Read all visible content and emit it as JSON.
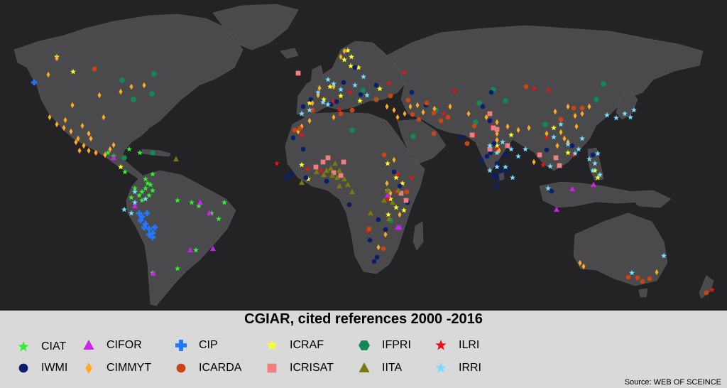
{
  "title": "CGIAR,  cited references 2000 -2016",
  "source": "Source: WEB OF SCEINCE",
  "legend": [
    {
      "id": "ciat",
      "label": "CIAT",
      "color": "#33ee33",
      "shape": "star5"
    },
    {
      "id": "cifor",
      "label": "CIFOR",
      "color": "#cc22ee",
      "shape": "triangle"
    },
    {
      "id": "cip",
      "label": "CIP",
      "color": "#2277ff",
      "shape": "cross"
    },
    {
      "id": "icraf",
      "label": "ICRAF",
      "color": "#ffff22",
      "shape": "star5"
    },
    {
      "id": "ifpri",
      "label": "IFPRI",
      "color": "#118855",
      "shape": "hexagon"
    },
    {
      "id": "ilri",
      "label": "ILRI",
      "color": "#ee1111",
      "shape": "star5"
    },
    {
      "id": "iwmi",
      "label": "IWMI",
      "color": "#0a1e6e",
      "shape": "circle"
    },
    {
      "id": "cimmyt",
      "label": "CIMMYT",
      "color": "#ffaa22",
      "shape": "diamond"
    },
    {
      "id": "icarda",
      "label": "ICARDA",
      "color": "#cc4411",
      "shape": "circle"
    },
    {
      "id": "icrisat",
      "label": "ICRISAT",
      "color": "#f08080",
      "shape": "square"
    },
    {
      "id": "iita",
      "label": "IITA",
      "color": "#7a7a10",
      "shape": "triangle"
    },
    {
      "id": "irri",
      "label": "IRRI",
      "color": "#77ddff",
      "shape": "star5"
    }
  ],
  "map_points": {
    "ciat": [
      [
        208,
        258
      ],
      [
        205,
        265
      ],
      [
        200,
        270
      ],
      [
        196,
        275
      ],
      [
        212,
        260
      ],
      [
        190,
        265
      ],
      [
        185,
        278
      ],
      [
        215,
        245
      ],
      [
        210,
        275
      ],
      [
        250,
        282
      ],
      [
        270,
        285
      ],
      [
        298,
        300
      ],
      [
        280,
        290
      ],
      [
        316,
        285
      ],
      [
        308,
        308
      ],
      [
        176,
        242
      ],
      [
        160,
        220
      ],
      [
        152,
        215
      ],
      [
        200,
        282
      ],
      [
        276,
        352
      ],
      [
        215,
        384
      ],
      [
        250,
        378
      ],
      [
        197,
        215
      ],
      [
        182,
        210
      ],
      [
        215,
        268
      ],
      [
        205,
        252
      ]
    ],
    "cifor": [
      [
        160,
        222
      ],
      [
        190,
        290
      ],
      [
        295,
        300
      ],
      [
        300,
        350
      ],
      [
        282,
        285
      ],
      [
        268,
        352
      ],
      [
        546,
        275
      ],
      [
        563,
        320
      ],
      [
        784,
        295
      ],
      [
        806,
        266
      ],
      [
        836,
        260
      ],
      [
        216,
        385
      ],
      [
        560,
        320
      ]
    ],
    "cip": [
      [
        48,
        116
      ],
      [
        200,
        305
      ],
      [
        205,
        315
      ],
      [
        210,
        322
      ],
      [
        215,
        328
      ],
      [
        203,
        320
      ],
      [
        198,
        310
      ],
      [
        207,
        300
      ],
      [
        218,
        320
      ],
      [
        215,
        334
      ],
      [
        210,
        330
      ],
      [
        196,
        300
      ]
    ],
    "icraf": [
      [
        103,
        101
      ],
      [
        80,
        80
      ],
      [
        490,
        71
      ],
      [
        485,
        84
      ],
      [
        495,
        80
      ],
      [
        494,
        93
      ],
      [
        505,
        95
      ],
      [
        465,
        122
      ],
      [
        436,
        145
      ],
      [
        456,
        140
      ],
      [
        480,
        135
      ],
      [
        507,
        142
      ],
      [
        535,
        125
      ],
      [
        546,
        230
      ],
      [
        558,
        250
      ],
      [
        567,
        258
      ],
      [
        550,
        280
      ],
      [
        558,
        292
      ],
      [
        569,
        296
      ],
      [
        547,
        302
      ],
      [
        780,
        180
      ],
      [
        800,
        215
      ],
      [
        838,
        240
      ],
      [
        842,
        250
      ],
      [
        425,
        232
      ],
      [
        434,
        252
      ],
      [
        546,
        268
      ],
      [
        720,
        190
      ],
      [
        700,
        205
      ],
      [
        170,
        235
      ]
    ],
    "ifpri": [
      [
        217,
        104
      ],
      [
        172,
        113
      ],
      [
        188,
        140
      ],
      [
        214,
        132
      ],
      [
        175,
        222
      ],
      [
        215,
        215
      ],
      [
        496,
        183
      ],
      [
        511,
        127
      ],
      [
        530,
        140
      ],
      [
        582,
        192
      ],
      [
        614,
        155
      ],
      [
        670,
        172
      ],
      [
        675,
        145
      ],
      [
        712,
        142
      ],
      [
        768,
        175
      ],
      [
        850,
        118
      ],
      [
        695,
        126
      ],
      [
        840,
        140
      ],
      [
        550,
        310
      ]
    ],
    "ilri": [
      [
        548,
        117
      ],
      [
        569,
        102
      ],
      [
        425,
        190
      ],
      [
        470,
        143
      ],
      [
        478,
        154
      ],
      [
        493,
        129
      ],
      [
        640,
        128
      ],
      [
        752,
        125
      ],
      [
        773,
        127
      ],
      [
        808,
        218
      ],
      [
        765,
        232
      ],
      [
        433,
        238
      ],
      [
        452,
        240
      ],
      [
        560,
        245
      ],
      [
        580,
        250
      ],
      [
        558,
        270
      ],
      [
        546,
        280
      ],
      [
        518,
        325
      ],
      [
        625,
        160
      ],
      [
        693,
        178
      ],
      [
        700,
        210
      ],
      [
        668,
        190
      ],
      [
        390,
        230
      ],
      [
        1003,
        408
      ],
      [
        770,
        194
      ]
    ],
    "iwmi": [
      [
        413,
        194
      ],
      [
        427,
        210
      ],
      [
        427,
        150
      ],
      [
        438,
        140
      ],
      [
        466,
        147
      ],
      [
        474,
        143
      ],
      [
        484,
        116
      ],
      [
        508,
        133
      ],
      [
        530,
        120
      ],
      [
        500,
        95
      ],
      [
        580,
        130
      ],
      [
        600,
        148
      ],
      [
        649,
        193
      ],
      [
        692,
        130
      ],
      [
        680,
        150
      ],
      [
        690,
        170
      ],
      [
        696,
        202
      ],
      [
        691,
        215
      ],
      [
        700,
        230
      ],
      [
        695,
        247
      ],
      [
        700,
        250
      ],
      [
        686,
        220
      ],
      [
        678,
        225
      ],
      [
        712,
        218
      ],
      [
        714,
        240
      ],
      [
        770,
        211
      ],
      [
        777,
        269
      ],
      [
        806,
        205
      ],
      [
        835,
        218
      ],
      [
        404,
        250
      ],
      [
        410,
        245
      ],
      [
        431,
        250
      ],
      [
        460,
        255
      ],
      [
        492,
        288
      ],
      [
        533,
        309
      ],
      [
        543,
        323
      ],
      [
        521,
        338
      ],
      [
        531,
        362
      ],
      [
        527,
        368
      ],
      [
        574,
        285
      ],
      [
        563,
        262
      ],
      [
        700,
        262
      ],
      [
        555,
        242
      ],
      [
        705,
        240
      ]
    ],
    "cimmyt": [
      [
        68,
        105
      ],
      [
        80,
        82
      ],
      [
        140,
        134
      ],
      [
        146,
        165
      ],
      [
        170,
        129
      ],
      [
        116,
        177
      ],
      [
        102,
        148
      ],
      [
        70,
        165
      ],
      [
        80,
        175
      ],
      [
        90,
        180
      ],
      [
        100,
        185
      ],
      [
        110,
        195
      ],
      [
        118,
        205
      ],
      [
        125,
        212
      ],
      [
        135,
        215
      ],
      [
        148,
        218
      ],
      [
        155,
        210
      ],
      [
        160,
        204
      ],
      [
        92,
        169
      ],
      [
        107,
        200
      ],
      [
        128,
        195
      ],
      [
        112,
        212
      ],
      [
        125,
        188
      ],
      [
        485,
        72
      ],
      [
        480,
        80
      ],
      [
        450,
        124
      ],
      [
        448,
        134
      ],
      [
        440,
        145
      ],
      [
        470,
        122
      ],
      [
        470,
        165
      ],
      [
        436,
        170
      ],
      [
        425,
        178
      ],
      [
        420,
        185
      ],
      [
        545,
        150
      ],
      [
        555,
        155
      ],
      [
        560,
        165
      ],
      [
        570,
        160
      ],
      [
        578,
        150
      ],
      [
        588,
        148
      ],
      [
        596,
        158
      ],
      [
        612,
        153
      ],
      [
        634,
        150
      ],
      [
        660,
        160
      ],
      [
        685,
        165
      ],
      [
        700,
        172
      ],
      [
        715,
        178
      ],
      [
        730,
        183
      ],
      [
        745,
        180
      ],
      [
        700,
        197
      ],
      [
        703,
        212
      ],
      [
        782,
        157
      ],
      [
        800,
        150
      ],
      [
        810,
        163
      ],
      [
        820,
        160
      ],
      [
        830,
        150
      ],
      [
        790,
        186
      ],
      [
        795,
        195
      ],
      [
        812,
        178
      ],
      [
        800,
        200
      ],
      [
        785,
        205
      ],
      [
        770,
        188
      ],
      [
        817,
        370
      ],
      [
        822,
        375
      ],
      [
        925,
        383
      ],
      [
        545,
        258
      ],
      [
        550,
        272
      ],
      [
        543,
        330
      ],
      [
        533,
        348
      ],
      [
        563,
        302
      ],
      [
        555,
        225
      ],
      [
        700,
        188
      ],
      [
        752,
        228
      ],
      [
        185,
        122
      ],
      [
        203,
        120
      ]
    ],
    "icarda": [
      [
        133,
        97
      ],
      [
        415,
        183
      ],
      [
        422,
        181
      ],
      [
        440,
        155
      ],
      [
        496,
        155
      ],
      [
        480,
        160
      ],
      [
        530,
        140
      ],
      [
        550,
        135
      ],
      [
        575,
        141
      ],
      [
        581,
        161
      ],
      [
        590,
        168
      ],
      [
        601,
        145
      ],
      [
        611,
        159
      ],
      [
        621,
        170
      ],
      [
        631,
        165
      ],
      [
        611,
        188
      ],
      [
        658,
        202
      ],
      [
        668,
        177
      ],
      [
        741,
        122
      ],
      [
        808,
        152
      ],
      [
        820,
        152
      ],
      [
        790,
        168
      ],
      [
        541,
        218
      ],
      [
        573,
        270
      ],
      [
        520,
        322
      ],
      [
        898,
        391
      ],
      [
        905,
        396
      ],
      [
        915,
        392
      ],
      [
        995,
        412
      ],
      [
        885,
        390
      ],
      [
        540,
        350
      ]
    ],
    "icrisat": [
      [
        420,
        103
      ],
      [
        462,
        222
      ],
      [
        445,
        235
      ],
      [
        470,
        243
      ],
      [
        480,
        247
      ],
      [
        484,
        228
      ],
      [
        565,
        272
      ],
      [
        572,
        282
      ],
      [
        690,
        160
      ],
      [
        695,
        180
      ],
      [
        700,
        182
      ],
      [
        690,
        210
      ],
      [
        715,
        205
      ],
      [
        760,
        218
      ],
      [
        783,
        222
      ],
      [
        788,
        233
      ],
      [
        665,
        190
      ],
      [
        455,
        228
      ]
    ],
    "iita": [
      [
        425,
        257
      ],
      [
        446,
        242
      ],
      [
        456,
        246
      ],
      [
        460,
        240
      ],
      [
        466,
        237
      ],
      [
        472,
        230
      ],
      [
        478,
        240
      ],
      [
        485,
        252
      ],
      [
        490,
        260
      ],
      [
        478,
        262
      ],
      [
        468,
        247
      ],
      [
        496,
        270
      ],
      [
        546,
        268
      ],
      [
        553,
        285
      ],
      [
        548,
        308
      ],
      [
        561,
        268
      ],
      [
        522,
        300
      ],
      [
        541,
        282
      ],
      [
        248,
        224
      ],
      [
        475,
        250
      ]
    ],
    "irri": [
      [
        190,
        270
      ],
      [
        205,
        280
      ],
      [
        190,
        285
      ],
      [
        185,
        300
      ],
      [
        175,
        295
      ],
      [
        462,
        112
      ],
      [
        470,
        118
      ],
      [
        480,
        126
      ],
      [
        500,
        120
      ],
      [
        512,
        108
      ],
      [
        425,
        160
      ],
      [
        436,
        155
      ],
      [
        448,
        130
      ],
      [
        455,
        144
      ],
      [
        462,
        147
      ],
      [
        517,
        134
      ],
      [
        690,
        205
      ],
      [
        700,
        215
      ],
      [
        708,
        200
      ],
      [
        720,
        210
      ],
      [
        730,
        220
      ],
      [
        740,
        210
      ],
      [
        700,
        235
      ],
      [
        690,
        240
      ],
      [
        712,
        235
      ],
      [
        722,
        250
      ],
      [
        780,
        193
      ],
      [
        790,
        175
      ],
      [
        800,
        203
      ],
      [
        810,
        216
      ],
      [
        830,
        224
      ],
      [
        835,
        240
      ],
      [
        845,
        246
      ],
      [
        838,
        230
      ],
      [
        842,
        216
      ],
      [
        855,
        162
      ],
      [
        868,
        166
      ],
      [
        880,
        160
      ],
      [
        893,
        155
      ],
      [
        888,
        165
      ],
      [
        820,
        195
      ],
      [
        815,
        210
      ],
      [
        775,
        234
      ],
      [
        772,
        265
      ],
      [
        935,
        360
      ],
      [
        890,
        384
      ]
    ]
  }
}
